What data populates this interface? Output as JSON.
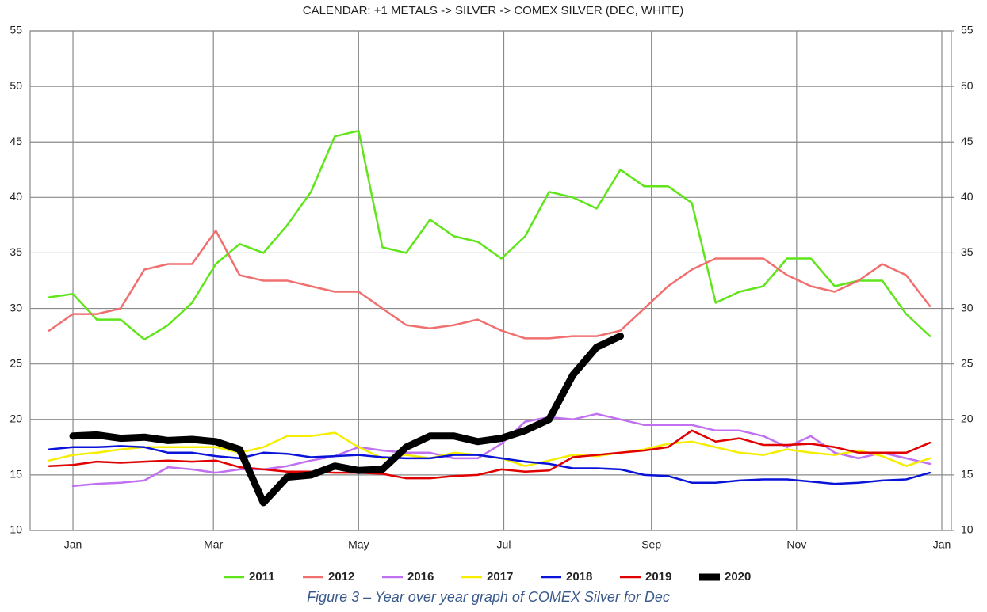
{
  "chart_data": {
    "type": "line",
    "title": "CALENDAR: +1 METALS -> SILVER -> COMEX SILVER (DEC, WHITE)",
    "caption": "Figure 3 – Year over year graph of COMEX Silver for Dec",
    "x": [
      -10,
      0,
      10,
      20,
      30,
      40,
      50,
      60,
      70,
      80,
      90,
      100,
      110,
      120,
      130,
      140,
      150,
      160,
      170,
      180,
      190,
      200,
      210,
      220,
      230,
      240,
      250,
      260,
      270,
      280,
      290,
      300,
      310,
      320,
      330,
      340,
      350,
      360
    ],
    "xlim": [
      -18,
      369
    ],
    "xticks": [
      {
        "value": 0,
        "label": "Jan"
      },
      {
        "value": 59,
        "label": "Mar"
      },
      {
        "value": 120,
        "label": "May"
      },
      {
        "value": 181,
        "label": "Jul"
      },
      {
        "value": 243,
        "label": "Sep"
      },
      {
        "value": 304,
        "label": "Nov"
      },
      {
        "value": 365,
        "label": "Jan"
      }
    ],
    "ylim": [
      10,
      55
    ],
    "yticks": [
      10,
      15,
      20,
      25,
      30,
      35,
      40,
      45,
      50,
      55
    ],
    "y2lim": [
      10,
      55
    ],
    "y2ticks": [
      10,
      15,
      20,
      25,
      30,
      35,
      40,
      45,
      50,
      55
    ],
    "grid": true,
    "legend": "bottom",
    "series": [
      {
        "name": "2011",
        "color": "#5fe51a",
        "width": 2.5,
        "values": [
          31,
          31.3,
          29,
          29,
          27.2,
          28.5,
          30.5,
          34,
          35.8,
          35,
          37.5,
          40.5,
          45.5,
          46,
          35.5,
          35,
          38,
          36.5,
          36,
          34.5,
          36.5,
          40.5,
          40,
          39,
          42.5,
          41,
          41,
          39.5,
          30.5,
          31.5,
          32,
          34.5,
          34.5,
          32,
          32.5,
          32.5,
          29.5,
          27.5
        ]
      },
      {
        "name": "2012",
        "color": "#f07070",
        "width": 2.5,
        "values": [
          28,
          29.5,
          29.5,
          30,
          33.5,
          34,
          34,
          37,
          33,
          32.5,
          32.5,
          32,
          31.5,
          31.5,
          30,
          28.5,
          28.2,
          28.5,
          29,
          28,
          27.3,
          27.3,
          27.5,
          27.5,
          28,
          30,
          32,
          33.5,
          34.5,
          34.5,
          34.5,
          33,
          32,
          31.5,
          32.5,
          34,
          33,
          30.2
        ]
      },
      {
        "name": "2016",
        "color": "#c070f0",
        "width": 2.5,
        "values": [
          null,
          14,
          14.2,
          14.3,
          14.5,
          15.7,
          15.5,
          15.2,
          15.5,
          15.5,
          15.8,
          16.3,
          16.7,
          17.5,
          17.2,
          17,
          17,
          16.5,
          16.5,
          17.8,
          19.8,
          20.2,
          20,
          20.5,
          20,
          19.5,
          19.5,
          19.5,
          19,
          19,
          18.5,
          17.5,
          18.5,
          17,
          16.5,
          17,
          16.5,
          16
        ]
      },
      {
        "name": "2017",
        "color": "#f5ee00",
        "width": 2.5,
        "values": [
          16.3,
          16.8,
          17,
          17.3,
          17.5,
          17.5,
          17.5,
          17.5,
          17,
          17.5,
          18.5,
          18.5,
          18.8,
          17.5,
          16.5,
          16.8,
          16.5,
          17,
          16.8,
          16.5,
          15.8,
          16.3,
          16.8,
          16.7,
          17,
          17.3,
          17.8,
          18,
          17.5,
          17,
          16.8,
          17.3,
          17,
          16.8,
          17.2,
          16.7,
          15.8,
          16.5
        ]
      },
      {
        "name": "2018",
        "color": "#0a14d8",
        "width": 2.5,
        "values": [
          17.3,
          17.5,
          17.5,
          17.6,
          17.5,
          17,
          17,
          16.7,
          16.5,
          17,
          16.9,
          16.6,
          16.7,
          16.8,
          16.6,
          16.5,
          16.5,
          16.8,
          16.8,
          16.5,
          16.2,
          16,
          15.6,
          15.6,
          15.5,
          15,
          14.9,
          14.3,
          14.3,
          14.5,
          14.6,
          14.6,
          14.4,
          14.2,
          14.3,
          14.5,
          14.6,
          15.2
        ]
      },
      {
        "name": "2019",
        "color": "#e00000",
        "width": 2.5,
        "values": [
          15.8,
          15.9,
          16.2,
          16.1,
          16.2,
          16.3,
          16.2,
          16.3,
          15.7,
          15.5,
          15.3,
          15.3,
          15.2,
          15.2,
          15.1,
          14.7,
          14.7,
          14.9,
          15,
          15.5,
          15.3,
          15.4,
          16.6,
          16.8,
          17,
          17.2,
          17.5,
          19,
          18,
          18.3,
          17.7,
          17.7,
          17.8,
          17.5,
          17,
          17,
          17,
          17.9
        ]
      },
      {
        "name": "2020",
        "color": "#000000",
        "width": 9,
        "values": [
          null,
          18.5,
          18.6,
          18.3,
          18.4,
          18.1,
          18.2,
          18,
          17.3,
          12.5,
          14.8,
          15,
          15.8,
          15.4,
          15.5,
          17.5,
          18.5,
          18.5,
          18,
          18.3,
          19,
          20,
          24,
          26.5,
          27.5,
          null,
          null,
          null,
          null,
          null,
          null,
          null,
          null,
          null,
          null,
          null,
          null,
          null
        ]
      }
    ]
  }
}
